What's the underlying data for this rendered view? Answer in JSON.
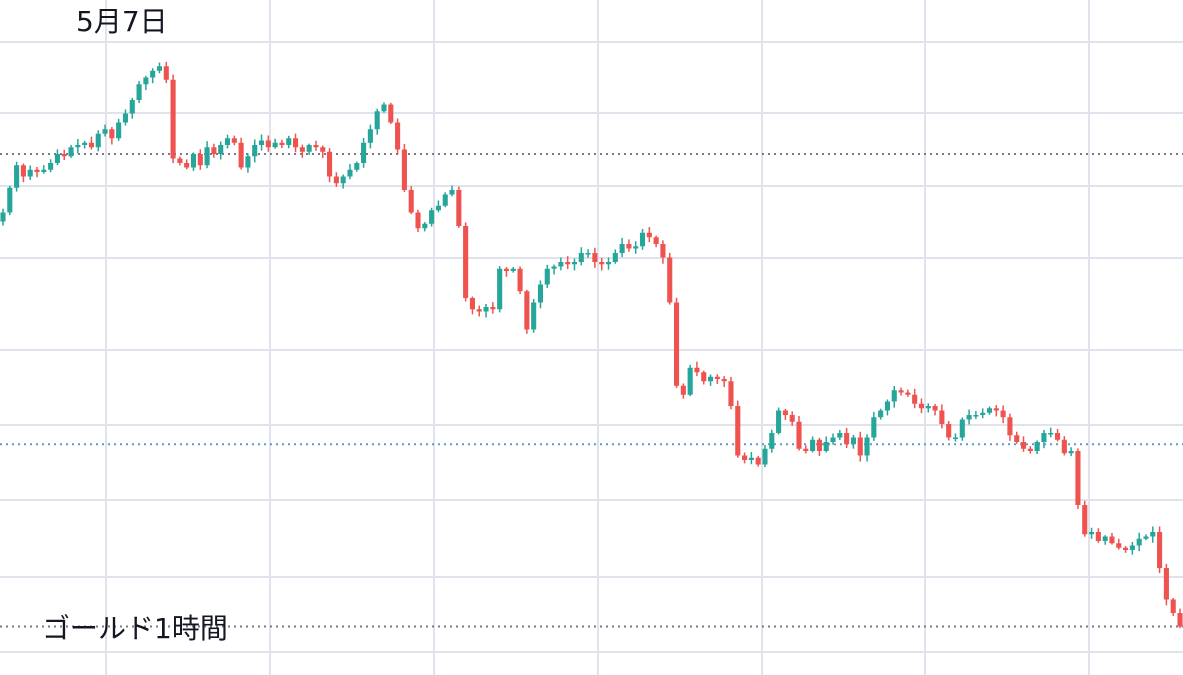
{
  "chart_data": {
    "type": "candlestick",
    "title": "",
    "annotations": {
      "peak_label": "5月7日",
      "caption": "ゴールド1時間"
    },
    "grid": true,
    "axes_visible": false,
    "colors": {
      "up": "#26a69a",
      "down": "#ef5350",
      "grid": "#e0e3eb",
      "reference_line_high": "#787b86",
      "reference_line_mid": "#5b9bd5",
      "reference_line_low": "#787b86"
    },
    "reference_levels": {
      "high": 1986.0,
      "mid": 1857.0,
      "low": 1776.0
    },
    "ylim": [
      1770,
      2050
    ],
    "series_close": [
      1960,
      1971,
      1981,
      1976,
      1979,
      1978,
      1979,
      1982,
      1986,
      1985,
      1989,
      1990,
      1991,
      1989,
      1995,
      1997,
      1993,
      2000,
      2004,
      2010,
      2017,
      2020,
      2023,
      2025,
      2019,
      1984,
      1982,
      1980,
      1986,
      1981,
      1989,
      1986,
      1990,
      1993,
      1991,
      1980,
      1985,
      1990,
      1992,
      1989,
      1991,
      1990,
      1993,
      1989,
      1987,
      1990,
      1989,
      1987,
      1976,
      1973,
      1976,
      1979,
      1982,
      1991,
      1997,
      2005,
      2008,
      2000,
      1988,
      1970,
      1960,
      1953,
      1955,
      1961,
      1963,
      1968,
      1970,
      1954,
      1922,
      1917,
      1916,
      1918,
      1917,
      1935,
      1934,
      1935,
      1925,
      1908,
      1920,
      1928,
      1935,
      1936,
      1938,
      1937,
      1938,
      1942,
      1942,
      1938,
      1937,
      1938,
      1942,
      1946,
      1944,
      1945,
      1951,
      1949,
      1946,
      1940,
      1920,
      1883,
      1879,
      1891,
      1889,
      1885,
      1887,
      1886,
      1885,
      1874,
      1852,
      1850,
      1851,
      1848,
      1855,
      1862,
      1872,
      1870,
      1867,
      1855,
      1854,
      1859,
      1854,
      1858,
      1860,
      1862,
      1857,
      1860,
      1852,
      1860,
      1869,
      1872,
      1876,
      1881,
      1880,
      1879,
      1875,
      1873,
      1874,
      1872,
      1866,
      1860,
      1860,
      1868,
      1870,
      1870,
      1871,
      1873,
      1872,
      1869,
      1861,
      1858,
      1855,
      1854,
      1858,
      1862,
      1862,
      1859,
      1853,
      1854,
      1830,
      1817,
      1818,
      1814,
      1816,
      1813,
      1811,
      1810,
      1812,
      1815,
      1816,
      1818,
      1802,
      1788,
      1782,
      1776
    ]
  }
}
